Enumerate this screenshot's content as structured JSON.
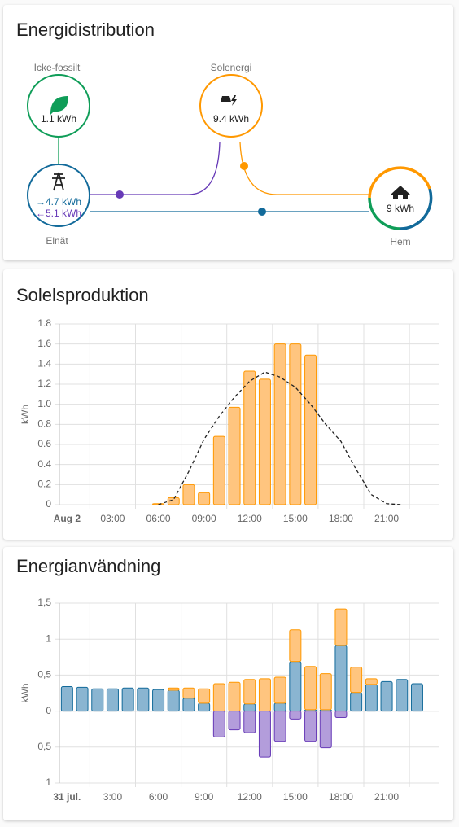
{
  "distribution": {
    "title": "Energidistribution",
    "nodes": {
      "non_fossil": {
        "label": "Icke-fossilt",
        "value": "1.1 kWh"
      },
      "solar": {
        "label": "Solenergi",
        "value": "9.4 kWh"
      },
      "grid": {
        "label": "Elnät",
        "value_in": "→4.7 kWh",
        "value_out": "←5.1 kWh"
      },
      "home": {
        "label": "Hem",
        "value": "9 kWh"
      }
    }
  },
  "chart_data": [
    {
      "type": "bar",
      "title": "Solelsproduktion",
      "y_label": "kWh",
      "categories": [
        "Aug 2",
        null,
        null,
        "03:00",
        null,
        null,
        "06:00",
        null,
        null,
        "09:00",
        null,
        null,
        "12:00",
        null,
        null,
        "15:00",
        null,
        null,
        "18:00",
        null,
        null,
        "21:00",
        null,
        null
      ],
      "series": [
        {
          "type": "bar",
          "color": "#ffc57f",
          "stroke": "#ff9800",
          "values": [
            0,
            0,
            0,
            0,
            0,
            0,
            0.01,
            0.07,
            0.2,
            0.12,
            0.68,
            0.97,
            1.33,
            1.25,
            1.6,
            1.6,
            1.49,
            0,
            0,
            0,
            0,
            0,
            0,
            0
          ]
        },
        {
          "type": "line",
          "color": "#212121",
          "dashed": true,
          "values": [
            null,
            null,
            null,
            null,
            null,
            null,
            0,
            0.05,
            0.33,
            0.65,
            0.88,
            1.07,
            1.23,
            1.32,
            1.27,
            1.17,
            1.0,
            0.8,
            0.63,
            0.35,
            0.1,
            0.01,
            0,
            null
          ]
        }
      ],
      "ylim": [
        0,
        1.8
      ],
      "yticks": [
        0,
        0.2,
        0.4,
        0.6,
        0.8,
        {
          "value": 1,
          "label": "1.0"
        },
        1.2,
        1.4,
        1.6,
        1.8
      ],
      "grid": true
    },
    {
      "type": "bar",
      "title": "Energianvändning",
      "y_label": "kWh",
      "stacked": true,
      "categories": [
        "31 jul.",
        null,
        null,
        "3:00",
        null,
        null,
        "6:00",
        null,
        null,
        "9:00",
        null,
        null,
        "12:00",
        null,
        null,
        "15:00",
        null,
        null,
        "18:00",
        null,
        null,
        "21:00",
        null,
        null
      ],
      "series": [
        {
          "type": "bar",
          "color": "#8ab5d1",
          "stroke": "#126a9a",
          "values": [
            0.34,
            0.33,
            0.31,
            0.31,
            0.32,
            0.32,
            0.3,
            0.29,
            0.18,
            0.11,
            0,
            0,
            0.1,
            0,
            0.11,
            0.69,
            0.02,
            0.02,
            0.91,
            0.26,
            0.37,
            0.41,
            0.44,
            0.38
          ]
        },
        {
          "type": "bar",
          "color": "#ffc57f",
          "stroke": "#ff9800",
          "values": [
            0,
            0,
            0,
            0,
            0,
            0,
            0,
            0.03,
            0.14,
            0.2,
            0.38,
            0.4,
            0.34,
            0.45,
            0.36,
            0.44,
            0.6,
            0.5,
            0.51,
            0.35,
            0.08,
            0,
            0,
            0
          ]
        },
        {
          "type": "bar",
          "color": "#b39ddb",
          "stroke": "#673ab7",
          "values": [
            0,
            0,
            0,
            0,
            0,
            0,
            0,
            0,
            0,
            0,
            -0.36,
            -0.26,
            -0.3,
            -0.64,
            -0.42,
            -0.11,
            -0.42,
            -0.51,
            -0.09,
            0,
            0,
            0,
            0,
            0
          ]
        }
      ],
      "ylim": [
        -1,
        1.5
      ],
      "yticks": [
        {
          "value": -1,
          "label": "1"
        },
        {
          "value": -0.5,
          "label": "0,5"
        },
        0,
        {
          "value": 0.5,
          "label": "0,5"
        },
        1,
        {
          "value": 1.5,
          "label": "1,5"
        }
      ],
      "grid": true
    }
  ]
}
